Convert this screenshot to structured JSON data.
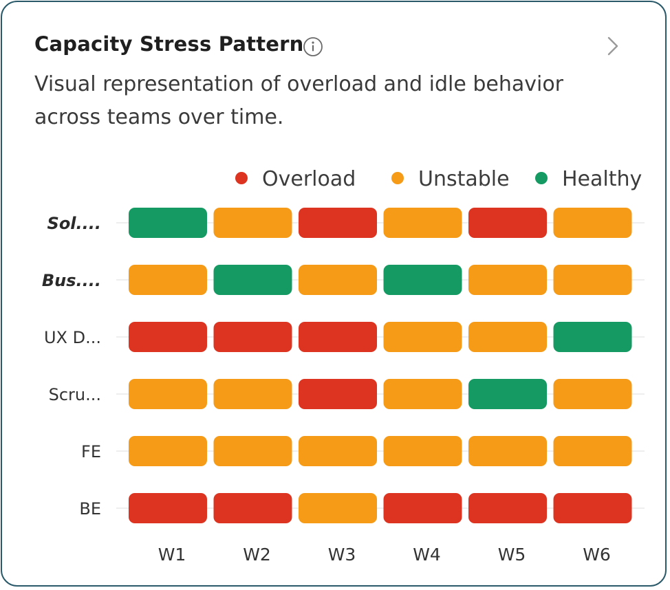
{
  "card": {
    "title": "Capacity Stress Pattern",
    "subtitle": "Visual representation of overload and idle behavior across teams over time.",
    "info_icon": "info-circle-icon",
    "chevron_icon": "chevron-right-icon"
  },
  "chart_data": {
    "type": "heatmap",
    "title": "Capacity Stress Pattern",
    "legend_placement": "top-right",
    "legend": [
      {
        "name": "Overload",
        "color": "#dc3420"
      },
      {
        "name": "Unstable",
        "color": "#f59b18"
      },
      {
        "name": "Healthy",
        "color": "#149a62"
      }
    ],
    "columns": [
      "W1",
      "W2",
      "W3",
      "W4",
      "W5",
      "W6"
    ],
    "rows": [
      {
        "label": "Sol....",
        "emphasis": true,
        "values": [
          "Healthy",
          "Unstable",
          "Overload",
          "Unstable",
          "Overload",
          "Unstable"
        ]
      },
      {
        "label": "Bus....",
        "emphasis": true,
        "values": [
          "Unstable",
          "Healthy",
          "Unstable",
          "Healthy",
          "Unstable",
          "Unstable"
        ]
      },
      {
        "label": "UX D...",
        "emphasis": false,
        "values": [
          "Overload",
          "Overload",
          "Overload",
          "Unstable",
          "Unstable",
          "Healthy"
        ]
      },
      {
        "label": "Scru...",
        "emphasis": false,
        "values": [
          "Unstable",
          "Unstable",
          "Overload",
          "Unstable",
          "Healthy",
          "Unstable"
        ]
      },
      {
        "label": "FE",
        "emphasis": false,
        "values": [
          "Unstable",
          "Unstable",
          "Unstable",
          "Unstable",
          "Unstable",
          "Unstable"
        ]
      },
      {
        "label": "BE",
        "emphasis": false,
        "values": [
          "Overload",
          "Overload",
          "Unstable",
          "Overload",
          "Overload",
          "Overload"
        ]
      }
    ]
  }
}
